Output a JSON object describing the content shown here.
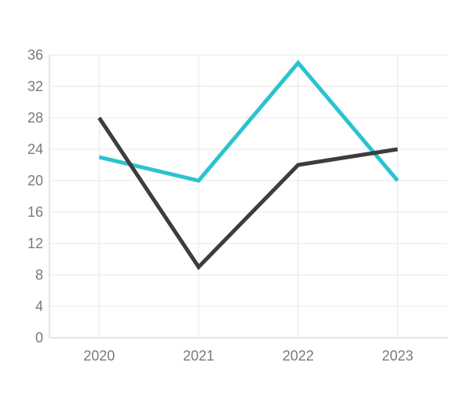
{
  "chart_data": {
    "type": "line",
    "title": "",
    "xlabel": "",
    "ylabel": "",
    "categories": [
      "2020",
      "2021",
      "2022",
      "2023"
    ],
    "series": [
      {
        "name": "teal-series",
        "color": "#2bc3cf",
        "values": [
          23,
          20,
          35,
          20
        ]
      },
      {
        "name": "dark-series",
        "color": "#3d3d3d",
        "values": [
          28,
          9,
          22,
          24
        ]
      }
    ],
    "ylim": [
      0,
      36
    ],
    "y_ticks": [
      0,
      4,
      8,
      12,
      16,
      20,
      24,
      28,
      32,
      36
    ],
    "grid": true,
    "legend": "none",
    "style": {
      "background": "#ffffff",
      "grid_color": "#e7e7e7",
      "axis_color": "#c9c9c9",
      "label_color": "#7a7a7a"
    }
  }
}
